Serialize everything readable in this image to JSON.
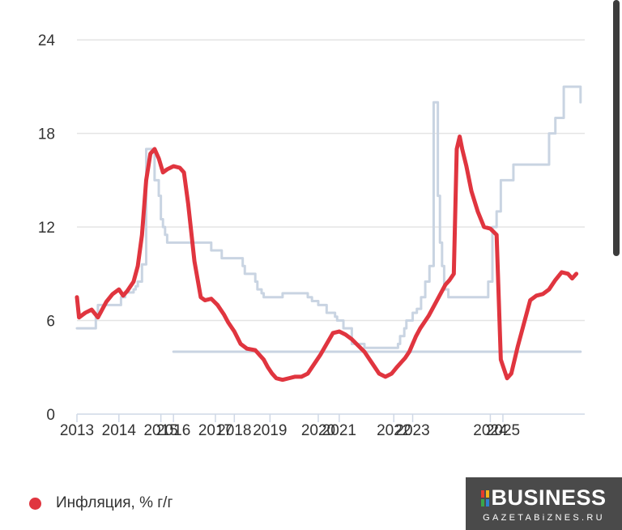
{
  "chart_data": {
    "type": "line",
    "x_unit": "year",
    "xlim": [
      2013.0,
      2025.1
    ],
    "ylim": [
      0,
      25
    ],
    "y_ticks": [
      0,
      6,
      12,
      18,
      24
    ],
    "x_ticks": [
      {
        "label": "2013",
        "x": 2013.0
      },
      {
        "label": "2014",
        "x": 2014.0
      },
      {
        "label": "2015",
        "x": 2015.0
      },
      {
        "label": "2016",
        "x": 2015.3
      },
      {
        "label": "2017",
        "x": 2016.3
      },
      {
        "label": "2018",
        "x": 2016.75
      },
      {
        "label": "2019",
        "x": 2017.6
      },
      {
        "label": "2020",
        "x": 2018.75
      },
      {
        "label": "2021",
        "x": 2019.25
      },
      {
        "label": "2022",
        "x": 2020.55
      },
      {
        "label": "2023",
        "x": 2021.0
      },
      {
        "label": "2024",
        "x": 2022.85
      },
      {
        "label": "2025",
        "x": 2023.15
      }
    ],
    "grid": true,
    "legend_position": "bottom-left",
    "series": [
      {
        "name": "Инфляция, % г/г",
        "color": "#e0353f",
        "x": [
          2013.0,
          2013.05,
          2013.2,
          2013.35,
          2013.5,
          2013.6,
          2013.7,
          2013.85,
          2014.0,
          2014.1,
          2014.2,
          2014.35,
          2014.45,
          2014.55,
          2014.65,
          2014.75,
          2014.85,
          2014.95,
          2015.05,
          2015.15,
          2015.3,
          2015.45,
          2015.55,
          2015.65,
          2015.8,
          2015.95,
          2016.05,
          2016.2,
          2016.35,
          2016.5,
          2016.6,
          2016.75,
          2016.9,
          2017.05,
          2017.25,
          2017.45,
          2017.55,
          2017.65,
          2017.75,
          2017.9,
          2018.05,
          2018.2,
          2018.35,
          2018.5,
          2018.65,
          2018.8,
          2018.95,
          2019.1,
          2019.25,
          2019.4,
          2019.55,
          2019.7,
          2019.85,
          2019.95,
          2020.05,
          2020.2,
          2020.35,
          2020.5,
          2020.62,
          2020.72,
          2020.82,
          2020.92,
          2021.0,
          2021.08,
          2021.18,
          2021.28,
          2021.38,
          2021.48,
          2021.58,
          2021.68,
          2021.78,
          2021.88,
          2021.98,
          2022.05,
          2022.12,
          2022.18,
          2022.28,
          2022.4,
          2022.55,
          2022.7,
          2022.85,
          2023.0,
          2023.1,
          2023.25,
          2023.35,
          2023.5,
          2023.65,
          2023.8,
          2023.95,
          2024.1,
          2024.25,
          2024.4,
          2024.55,
          2024.7,
          2024.8,
          2024.9
        ],
        "values": [
          7.5,
          6.2,
          6.5,
          6.7,
          6.2,
          6.7,
          7.2,
          7.7,
          8.0,
          7.6,
          7.9,
          8.5,
          9.5,
          11.5,
          15.0,
          16.7,
          17.0,
          16.4,
          15.5,
          15.7,
          15.9,
          15.8,
          15.5,
          13.5,
          9.8,
          7.5,
          7.3,
          7.4,
          7.0,
          6.4,
          5.9,
          5.3,
          4.5,
          4.2,
          4.1,
          3.5,
          3.0,
          2.6,
          2.3,
          2.2,
          2.3,
          2.4,
          2.4,
          2.6,
          3.2,
          3.8,
          4.5,
          5.2,
          5.3,
          5.1,
          4.8,
          4.4,
          4.0,
          3.6,
          3.2,
          2.6,
          2.4,
          2.6,
          3.0,
          3.3,
          3.6,
          4.0,
          4.5,
          5.0,
          5.5,
          5.9,
          6.3,
          6.8,
          7.3,
          7.8,
          8.3,
          8.6,
          9.0,
          17.0,
          17.8,
          17.0,
          15.9,
          14.3,
          13.0,
          12.0,
          11.9,
          11.5,
          3.5,
          2.3,
          2.6,
          4.3,
          5.8,
          7.3,
          7.6,
          7.7,
          8.0,
          8.6,
          9.1,
          9.0,
          8.7,
          9.0
        ]
      },
      {
        "name": "",
        "color": "#c9d4e2",
        "step": true,
        "x": [
          2013.0,
          2013.4,
          2013.45,
          2013.5,
          2014.05,
          2014.1,
          2014.15,
          2014.25,
          2014.35,
          2014.4,
          2014.45,
          2014.55,
          2014.65,
          2014.75,
          2014.85,
          2014.95,
          2015.0,
          2015.05,
          2015.1,
          2015.15,
          2015.95,
          2016.2,
          2016.45,
          2016.75,
          2016.95,
          2017.0,
          2017.25,
          2017.3,
          2017.4,
          2017.45,
          2017.55,
          2017.7,
          2017.8,
          2017.9,
          2018.1,
          2018.15,
          2018.2,
          2018.35,
          2018.5,
          2018.6,
          2018.75,
          2018.95,
          2019.15,
          2019.2,
          2019.35,
          2019.55,
          2019.85,
          2019.95,
          2020.25,
          2020.5,
          2020.65,
          2020.7,
          2020.8,
          2020.85,
          2021.0,
          2021.1,
          2021.2,
          2021.3,
          2021.4,
          2021.5,
          2021.6,
          2021.65,
          2021.7,
          2021.75,
          2021.85,
          2021.95,
          2022.15,
          2022.35,
          2022.45,
          2022.6,
          2022.7,
          2022.8,
          2022.9,
          2023.0,
          2023.1,
          2023.2,
          2023.4,
          2023.55,
          2023.65,
          2023.8,
          2024.0,
          2024.25,
          2024.4,
          2024.5,
          2024.6,
          2024.85,
          2025.0
        ],
        "values": [
          5.5,
          5.5,
          6.3,
          7.0,
          7.5,
          7.5,
          7.8,
          7.8,
          8.0,
          8.2,
          8.5,
          9.6,
          17.0,
          17.0,
          15.0,
          14.0,
          12.5,
          12.0,
          11.5,
          11.0,
          11.0,
          10.5,
          10.0,
          10.0,
          9.5,
          9.0,
          8.5,
          8.0,
          7.75,
          7.5,
          7.5,
          7.5,
          7.5,
          7.75,
          7.75,
          7.75,
          7.75,
          7.75,
          7.5,
          7.25,
          7.0,
          6.5,
          6.25,
          6.0,
          5.5,
          4.5,
          4.25,
          4.25,
          4.25,
          4.25,
          4.5,
          5.0,
          5.5,
          6.0,
          6.5,
          6.75,
          7.5,
          8.5,
          9.5,
          20.0,
          14.0,
          11.0,
          9.5,
          8.0,
          7.5,
          7.5,
          7.5,
          7.5,
          7.5,
          7.5,
          7.5,
          8.5,
          12.0,
          13.0,
          15.0,
          15.0,
          16.0,
          16.0,
          16.0,
          16.0,
          16.0,
          18.0,
          19.0,
          19.0,
          21.0,
          21.0,
          20.0
        ]
      },
      {
        "name": "",
        "color": "#c9d4e2",
        "x": [
          2015.3,
          2025.0
        ],
        "values": [
          4.0,
          4.0
        ]
      }
    ]
  },
  "legend": {
    "items": [
      {
        "label": "Инфляция, % г/г",
        "color": "#e0353f"
      }
    ]
  },
  "logo": {
    "main": "BUSINESS",
    "sub": "GAZETABiZNES.RU"
  }
}
